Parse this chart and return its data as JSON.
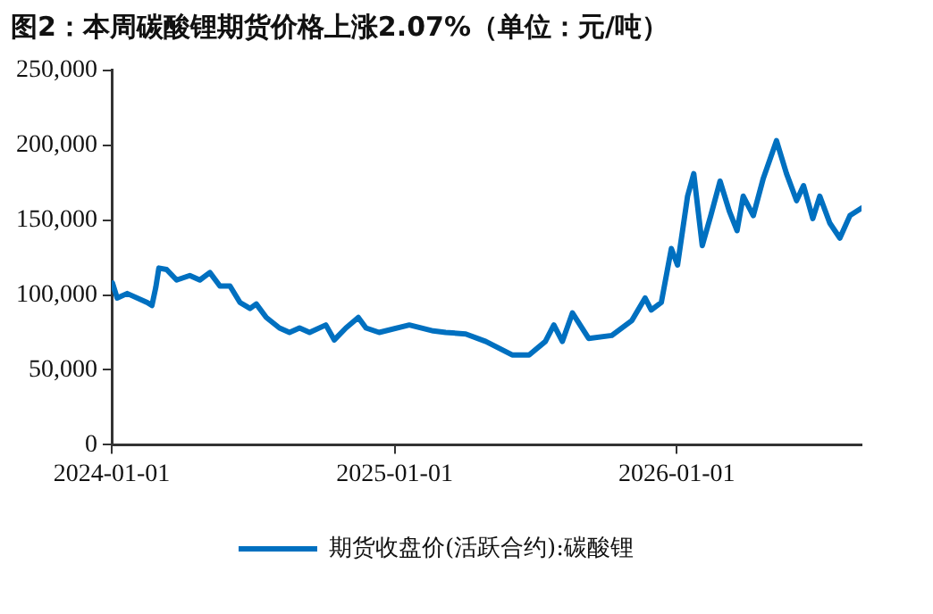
{
  "chart_data": {
    "type": "line",
    "title": "图2：本周碳酸锂期货价格上涨2.07%（单位：元/吨）",
    "x": [
      "2024-01-02",
      "2024-01-08",
      "2024-01-21",
      "2024-02-16",
      "2024-02-22",
      "2024-02-27",
      "2024-03-02",
      "2024-03-12",
      "2024-03-25",
      "2024-04-11",
      "2024-04-24",
      "2024-05-07",
      "2024-05-20",
      "2024-06-02",
      "2024-06-15",
      "2024-06-28",
      "2024-07-06",
      "2024-07-19",
      "2024-08-05",
      "2024-08-18",
      "2024-08-31",
      "2024-09-13",
      "2024-10-04",
      "2024-10-15",
      "2024-10-30",
      "2024-11-15",
      "2024-11-25",
      "2024-12-12",
      "2025-01-20",
      "2025-02-20",
      "2025-03-08",
      "2025-04-03",
      "2025-04-29",
      "2025-06-02",
      "2025-06-24",
      "2025-07-15",
      "2025-07-26",
      "2025-08-06",
      "2025-08-19",
      "2025-09-09",
      "2025-10-09",
      "2025-11-04",
      "2025-11-21",
      "2025-11-29",
      "2025-12-12",
      "2025-12-25",
      "2026-01-02",
      "2026-01-15",
      "2026-01-23",
      "2026-02-03",
      "2026-02-14",
      "2026-02-26",
      "2026-03-10",
      "2026-03-20",
      "2026-03-28",
      "2026-04-10",
      "2026-04-23",
      "2026-05-10",
      "2026-05-23",
      "2026-06-05",
      "2026-06-14",
      "2026-06-26",
      "2026-07-05",
      "2026-07-18",
      "2026-07-31",
      "2026-08-13",
      "2026-08-28"
    ],
    "series": [
      {
        "name": "期货收盘价(活跃合约):碳酸锂",
        "color": "#0070c0",
        "values": [
          108000,
          98000,
          101000,
          95000,
          93000,
          105000,
          118000,
          117000,
          110000,
          113000,
          110000,
          115000,
          106000,
          106000,
          95000,
          91000,
          94000,
          85000,
          78000,
          75000,
          78000,
          75000,
          80000,
          70000,
          78000,
          85000,
          78000,
          75000,
          80000,
          76000,
          75000,
          74000,
          69000,
          60000,
          60000,
          69000,
          80000,
          69000,
          88000,
          71000,
          73000,
          83000,
          98000,
          90000,
          95000,
          131000,
          120000,
          166000,
          181000,
          133000,
          153000,
          176000,
          156000,
          143000,
          166000,
          153000,
          178000,
          203000,
          181000,
          163000,
          173000,
          151000,
          166000,
          148000,
          138000,
          153000,
          158000
        ]
      }
    ],
    "xlim": [
      "2024-01-01",
      "2026-08-28"
    ],
    "xticks": [
      "2024-01-01",
      "2025-01-01",
      "2026-01-01"
    ],
    "ylim": [
      0,
      250000
    ],
    "yticks": [
      {
        "value": 0,
        "label": "0"
      },
      {
        "value": 50000,
        "label": "50,000"
      },
      {
        "value": 100000,
        "label": "100,000"
      },
      {
        "value": 150000,
        "label": "150,000"
      },
      {
        "value": 200000,
        "label": "200,000"
      },
      {
        "value": 250000,
        "label": "250,000"
      }
    ],
    "grid": false,
    "legend": "bottom",
    "marker": "none",
    "line_style": "solid"
  }
}
